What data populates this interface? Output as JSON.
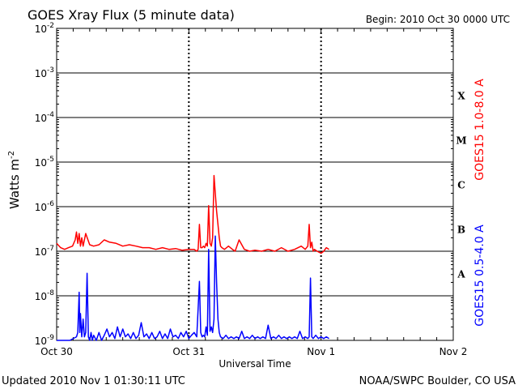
{
  "title": "GOES Xray Flux (5 minute data)",
  "begin_label": "Begin:  2010 Oct 30 0000 UTC",
  "footer_left": "Updated 2010 Nov  1 01:30:11 UTC",
  "footer_right": "NOAA/SWPC Boulder, CO USA",
  "colors": {
    "long_channel": "#ff0000",
    "short_channel": "#0000ff",
    "axis": "#000000"
  },
  "chart_data": {
    "type": "line",
    "xlabel": "Universal Time",
    "ylabel_base": "Watts m",
    "ylabel_exp": "-2",
    "x_unit": "days since 2010 Oct 30 0000 UTC",
    "xlim": [
      0,
      3
    ],
    "ylim": [
      1e-09,
      0.01
    ],
    "log_scale_y": true,
    "grid": "horizontal at each decade, dotted verticals at day boundaries",
    "x_ticks": [
      {
        "value": 0,
        "label": "Oct 30"
      },
      {
        "value": 1,
        "label": "Oct 31"
      },
      {
        "value": 2,
        "label": "Nov 1"
      },
      {
        "value": 3,
        "label": "Nov 2"
      }
    ],
    "y_ticks": [
      {
        "value": 0.01,
        "mant": "10",
        "exp": "-2"
      },
      {
        "value": 0.001,
        "mant": "10",
        "exp": "-3"
      },
      {
        "value": 0.0001,
        "mant": "10",
        "exp": "-4"
      },
      {
        "value": 1e-05,
        "mant": "10",
        "exp": "-5"
      },
      {
        "value": 1e-06,
        "mant": "10",
        "exp": "-6"
      },
      {
        "value": 1e-07,
        "mant": "10",
        "exp": "-7"
      },
      {
        "value": 1e-08,
        "mant": "10",
        "exp": "-8"
      },
      {
        "value": 1e-09,
        "mant": "10",
        "exp": "-9"
      }
    ],
    "flare_classes": [
      {
        "label": "X",
        "low": 0.0001,
        "high": 0.001
      },
      {
        "label": "M",
        "low": 1e-05,
        "high": 0.0001
      },
      {
        "label": "C",
        "low": 1e-06,
        "high": 1e-05
      },
      {
        "label": "B",
        "low": 1e-07,
        "high": 1e-06
      },
      {
        "label": "A",
        "low": 1e-08,
        "high": 1e-07
      }
    ],
    "series": [
      {
        "name": "GOES15 1.0-8.0 A",
        "color": "#ff0000",
        "x": [
          0,
          0.03,
          0.06,
          0.09,
          0.12,
          0.14,
          0.15,
          0.16,
          0.17,
          0.18,
          0.19,
          0.2,
          0.22,
          0.25,
          0.28,
          0.32,
          0.36,
          0.4,
          0.45,
          0.5,
          0.55,
          0.6,
          0.65,
          0.7,
          0.75,
          0.8,
          0.85,
          0.9,
          0.95,
          1.0,
          1.04,
          1.06,
          1.07,
          1.08,
          1.09,
          1.1,
          1.11,
          1.12,
          1.13,
          1.14,
          1.15,
          1.16,
          1.17,
          1.18,
          1.19,
          1.2,
          1.21,
          1.22,
          1.23,
          1.24,
          1.25,
          1.27,
          1.3,
          1.33,
          1.35,
          1.38,
          1.42,
          1.46,
          1.5,
          1.55,
          1.6,
          1.65,
          1.7,
          1.75,
          1.8,
          1.85,
          1.88,
          1.9,
          1.91,
          1.92,
          1.93,
          1.94,
          1.95,
          1.97,
          2.0,
          2.02,
          2.04,
          2.06
        ],
        "y": [
          1.5e-07,
          1.2e-07,
          1.1e-07,
          1.2e-07,
          1.3e-07,
          1.8e-07,
          2.7e-07,
          1.5e-07,
          2.5e-07,
          1.3e-07,
          2e-07,
          1.3e-07,
          2.5e-07,
          1.4e-07,
          1.3e-07,
          1.4e-07,
          1.8e-07,
          1.6e-07,
          1.5e-07,
          1.3e-07,
          1.4e-07,
          1.3e-07,
          1.2e-07,
          1.2e-07,
          1.1e-07,
          1.2e-07,
          1.1e-07,
          1.15e-07,
          1.05e-07,
          1.1e-07,
          1.1e-07,
          1e-07,
          1.1e-07,
          4e-07,
          1.2e-07,
          1.2e-07,
          1.3e-07,
          1.2e-07,
          1.5e-07,
          1.3e-07,
          1.05e-06,
          1.5e-07,
          1.3e-07,
          2e-07,
          5e-06,
          2e-06,
          8e-07,
          4e-07,
          2e-07,
          1.3e-07,
          1.2e-07,
          1.1e-07,
          1.3e-07,
          1.1e-07,
          1e-07,
          1.8e-07,
          1.1e-07,
          1e-07,
          1.05e-07,
          1e-07,
          1.1e-07,
          1e-07,
          1.2e-07,
          1e-07,
          1.1e-07,
          1.3e-07,
          1.1e-07,
          1.3e-07,
          4e-07,
          1.2e-07,
          1.6e-07,
          1e-07,
          1.1e-07,
          1e-07,
          9e-08,
          1e-07,
          1.2e-07,
          1.1e-07
        ]
      },
      {
        "name": "GOES15 0.5-4.0 A",
        "color": "#0000ff",
        "x": [
          0,
          0.05,
          0.1,
          0.15,
          0.16,
          0.17,
          0.175,
          0.18,
          0.19,
          0.2,
          0.21,
          0.22,
          0.23,
          0.24,
          0.25,
          0.26,
          0.27,
          0.28,
          0.3,
          0.32,
          0.34,
          0.36,
          0.38,
          0.4,
          0.42,
          0.44,
          0.46,
          0.48,
          0.5,
          0.52,
          0.54,
          0.56,
          0.58,
          0.6,
          0.62,
          0.64,
          0.66,
          0.68,
          0.7,
          0.72,
          0.74,
          0.76,
          0.78,
          0.8,
          0.82,
          0.84,
          0.86,
          0.88,
          0.9,
          0.92,
          0.94,
          0.96,
          0.98,
          1.0,
          1.02,
          1.04,
          1.06,
          1.08,
          1.09,
          1.1,
          1.11,
          1.12,
          1.13,
          1.14,
          1.15,
          1.16,
          1.17,
          1.18,
          1.19,
          1.2,
          1.21,
          1.22,
          1.23,
          1.24,
          1.26,
          1.28,
          1.3,
          1.32,
          1.34,
          1.36,
          1.38,
          1.4,
          1.42,
          1.44,
          1.46,
          1.48,
          1.5,
          1.52,
          1.54,
          1.56,
          1.58,
          1.6,
          1.62,
          1.64,
          1.66,
          1.68,
          1.7,
          1.72,
          1.74,
          1.76,
          1.78,
          1.8,
          1.82,
          1.84,
          1.86,
          1.88,
          1.9,
          1.91,
          1.92,
          1.93,
          1.94,
          1.96,
          1.98,
          2.0,
          2.02,
          2.04,
          2.06
        ],
        "y": [
          1e-09,
          1e-09,
          1e-09,
          1.2e-09,
          1.5e-09,
          1.2e-08,
          1.5e-09,
          4e-09,
          1.2e-09,
          3e-09,
          1.2e-09,
          1.5e-09,
          3.2e-08,
          1.2e-09,
          1e-09,
          1.5e-09,
          1e-09,
          1.3e-09,
          1e-09,
          1.5e-09,
          1e-09,
          1.3e-09,
          1.8e-09,
          1.2e-09,
          1.5e-09,
          1.1e-09,
          2e-09,
          1.2e-09,
          1.8e-09,
          1.2e-09,
          1.4e-09,
          1.1e-09,
          1.5e-09,
          1.1e-09,
          1.3e-09,
          2.5e-09,
          1.2e-09,
          1.4e-09,
          1.1e-09,
          1.5e-09,
          1.1e-09,
          1.2e-09,
          1.6e-09,
          1.1e-09,
          1.4e-09,
          1.1e-09,
          1.8e-09,
          1.2e-09,
          1.3e-09,
          1.1e-09,
          1.5e-09,
          1.2e-09,
          1.6e-09,
          1.1e-09,
          1.3e-09,
          1.5e-09,
          1.2e-09,
          2.1e-08,
          1.5e-09,
          1.2e-09,
          1.3e-09,
          1.2e-09,
          2e-09,
          1.3e-09,
          1.1e-07,
          1.6e-09,
          2e-09,
          1.5e-09,
          3e-09,
          2.2e-07,
          2e-08,
          3e-09,
          1.5e-09,
          1.2e-09,
          1.1e-09,
          1.3e-09,
          1.1e-09,
          1.2e-09,
          1.1e-09,
          1.2e-09,
          1.1e-09,
          1.6e-09,
          1.1e-09,
          1.2e-09,
          1.1e-09,
          1.3e-09,
          1.1e-09,
          1.2e-09,
          1.1e-09,
          1.2e-09,
          1.1e-09,
          2.2e-09,
          1.1e-09,
          1.2e-09,
          1.1e-09,
          1.3e-09,
          1.1e-09,
          1.2e-09,
          1.1e-09,
          1.2e-09,
          1.1e-09,
          1.2e-09,
          1.1e-09,
          1.6e-09,
          1.1e-09,
          1.2e-09,
          1.1e-09,
          1.2e-09,
          2.5e-08,
          1.2e-09,
          1.1e-09,
          1.3e-09,
          1.1e-09,
          1.2e-09,
          1.1e-09,
          1.2e-09,
          1.1e-09
        ]
      }
    ]
  }
}
